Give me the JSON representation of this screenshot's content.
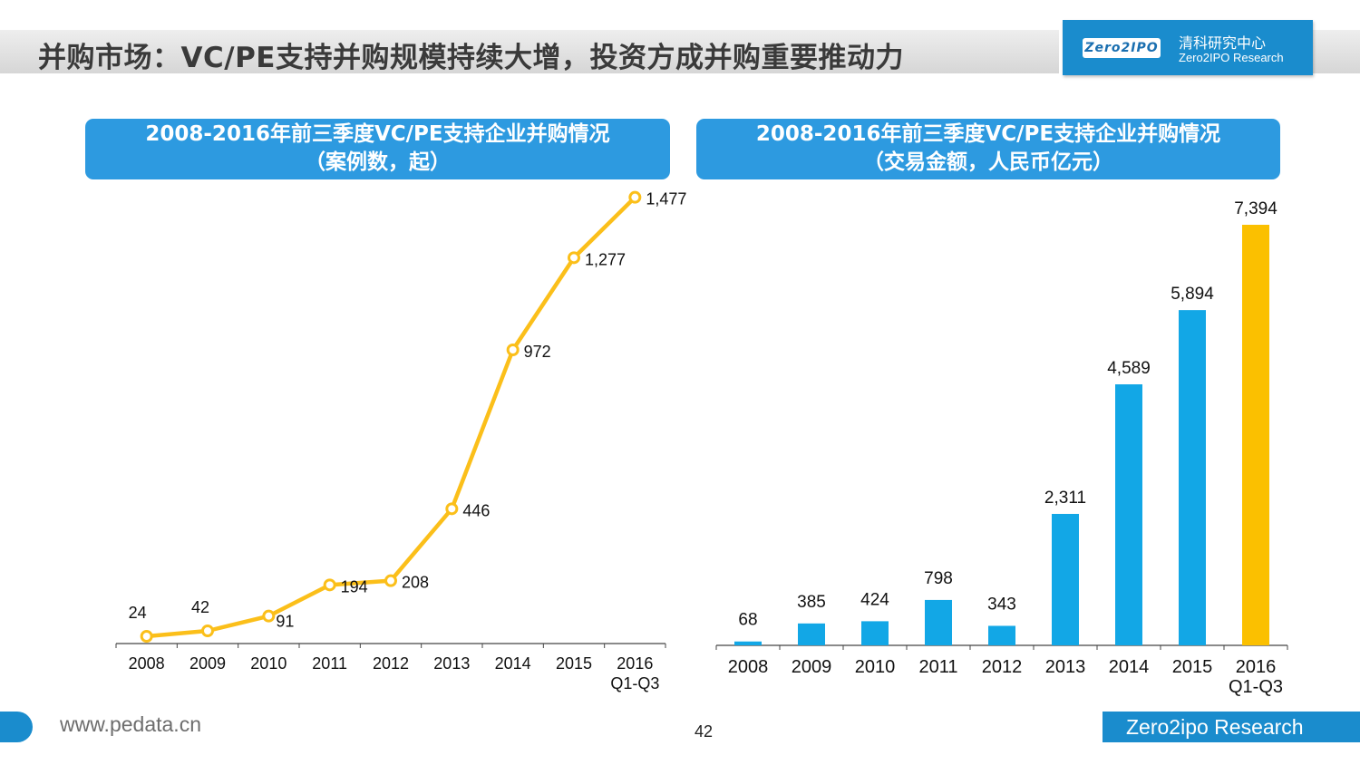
{
  "header": {
    "title": "并购市场：VC/PE支持并购规模持续大增，投资方成并购重要推动力",
    "logo": {
      "badge": "Zero2IPO",
      "cn": "清科研究中心",
      "en": "Zero2IPO Research"
    }
  },
  "panels": {
    "left": {
      "title_line1": "2008-2016年前三季度VC/PE支持企业并购情况",
      "title_line2": "（案例数，起）"
    },
    "right": {
      "title_line1": "2008-2016年前三季度VC/PE支持企业并购情况",
      "title_line2": "（交易金额，人民币亿元）"
    }
  },
  "chart_data": [
    {
      "type": "line",
      "categories": [
        "2008",
        "2009",
        "2010",
        "2011",
        "2012",
        "2013",
        "2014",
        "2015",
        "2016\nQ1-Q3"
      ],
      "values": [
        24,
        42,
        91,
        194,
        208,
        446,
        972,
        1277,
        1477
      ],
      "value_labels": [
        "24",
        "42",
        "91",
        "194",
        "208",
        "446",
        "972",
        "1,277",
        "1,477"
      ],
      "color": "#fbbf1a",
      "ylim": [
        0,
        1500
      ]
    },
    {
      "type": "bar",
      "categories": [
        "2008",
        "2009",
        "2010",
        "2011",
        "2012",
        "2013",
        "2014",
        "2015",
        "2016\nQ1-Q3"
      ],
      "values": [
        68,
        385,
        424,
        798,
        343,
        2311,
        4589,
        5894,
        7394
      ],
      "value_labels": [
        "68",
        "385",
        "424",
        "798",
        "343",
        "2,311",
        "4,589",
        "5,894",
        "7,394"
      ],
      "colors": [
        "#12a7e6",
        "#12a7e6",
        "#12a7e6",
        "#12a7e6",
        "#12a7e6",
        "#12a7e6",
        "#12a7e6",
        "#12a7e6",
        "#fbc000"
      ],
      "ylim": [
        0,
        7500
      ]
    }
  ],
  "footer": {
    "url": "www.pedata.cn",
    "page": "42",
    "brand": "Zero2ipo Research"
  }
}
